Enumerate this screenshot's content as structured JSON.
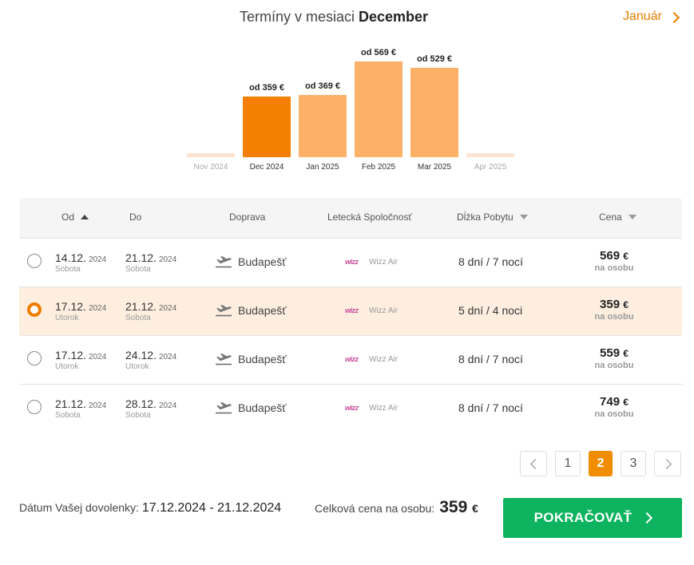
{
  "header": {
    "title_prefix": "Termíny v mesiaci",
    "title_month": "December",
    "next_month": "Január"
  },
  "chart_data": {
    "type": "bar",
    "categories": [
      "Nov 2024",
      "Dec 2024",
      "Jan 2025",
      "Feb 2025",
      "Mar 2025",
      "Apr 2025"
    ],
    "values": [
      null,
      359,
      369,
      569,
      529,
      null
    ],
    "price_labels": [
      "",
      "od 359 €",
      "od 369 €",
      "od 569 €",
      "od 529 €",
      ""
    ],
    "selected": "Dec 2024",
    "colors": {
      "selected": "#f57f00",
      "normal": "#fdb068",
      "empty": "#fde4d0"
    }
  },
  "table": {
    "headers": {
      "od": "Od",
      "do": "Do",
      "doprava": "Doprava",
      "airline": "Letecká Spoločnosť",
      "stay": "Dĺžka Pobytu",
      "price": "Cena"
    },
    "rows": [
      {
        "from_d": "14.12.",
        "from_y": "2024",
        "from_w": "Sobota",
        "to_d": "21.12.",
        "to_y": "2024",
        "to_w": "Sobota",
        "city": "Budapešť",
        "airline_logo": "wizz",
        "airline": "Wizz Air",
        "stay": "8 dní / 7 nocí",
        "price": "569",
        "cur": "€",
        "per": "na osobu",
        "selected": false
      },
      {
        "from_d": "17.12.",
        "from_y": "2024",
        "from_w": "Utorok",
        "to_d": "21.12.",
        "to_y": "2024",
        "to_w": "Sobota",
        "city": "Budapešť",
        "airline_logo": "wizz",
        "airline": "Wizz Air",
        "stay": "5 dní / 4 noci",
        "price": "359",
        "cur": "€",
        "per": "na osobu",
        "selected": true
      },
      {
        "from_d": "17.12.",
        "from_y": "2024",
        "from_w": "Utorok",
        "to_d": "24.12.",
        "to_y": "2024",
        "to_w": "Utorok",
        "city": "Budapešť",
        "airline_logo": "wizz",
        "airline": "Wizz Air",
        "stay": "8 dní / 7 nocí",
        "price": "559",
        "cur": "€",
        "per": "na osobu",
        "selected": false
      },
      {
        "from_d": "21.12.",
        "from_y": "2024",
        "from_w": "Sobota",
        "to_d": "28.12.",
        "to_y": "2024",
        "to_w": "Sobota",
        "city": "Budapešť",
        "airline_logo": "wizz",
        "airline": "Wizz Air",
        "stay": "8 dní / 7 nocí",
        "price": "749",
        "cur": "€",
        "per": "na osobu",
        "selected": false
      }
    ]
  },
  "pagination": {
    "pages": [
      "1",
      "2",
      "3"
    ],
    "active": "2"
  },
  "footer": {
    "date_label": "Dátum Vašej dovolenky:",
    "date_value": "17.12.2024 - 21.12.2024",
    "price_label": "Celková cena na osobu:",
    "price_value": "359",
    "price_cur": "€",
    "cta": "POKRAČOVAŤ"
  }
}
